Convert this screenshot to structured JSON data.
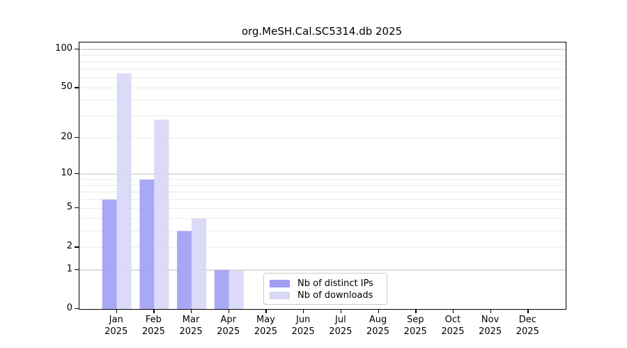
{
  "chart_data": {
    "type": "bar",
    "title": "org.MeSH.Cal.SC5314.db 2025",
    "categories": [
      "Jan",
      "Feb",
      "Mar",
      "Apr",
      "May",
      "Jun",
      "Jul",
      "Aug",
      "Sep",
      "Oct",
      "Nov",
      "Dec"
    ],
    "x_year_label": "2025",
    "series": [
      {
        "name": "Nb of distinct IPs",
        "color": "#9e9ef5",
        "values": [
          6,
          9,
          3,
          1,
          0,
          0,
          0,
          0,
          0,
          0,
          0,
          0
        ]
      },
      {
        "name": "Nb of downloads",
        "color": "#d7d7f7",
        "values": [
          65,
          28,
          4,
          1,
          0,
          0,
          0,
          0,
          0,
          0,
          0,
          0
        ]
      }
    ],
    "xlabel": "",
    "ylabel": "",
    "y_scale": "log1p",
    "ylim": [
      0,
      114
    ],
    "y_ticks": [
      0,
      1,
      2,
      5,
      10,
      20,
      50,
      100
    ],
    "y_major_gridlines": [
      1,
      10,
      100
    ],
    "y_minor_gridlines": [
      2,
      3,
      4,
      5,
      6,
      7,
      8,
      9,
      20,
      30,
      40,
      50,
      60,
      70,
      80,
      90
    ],
    "grid": true,
    "legend_position": "bottom-center",
    "colors": {
      "major_gridline": "#c6c6c6",
      "minor_gridline": "#e9e9e9",
      "spine": "#000000",
      "background": "#ffffff"
    }
  }
}
